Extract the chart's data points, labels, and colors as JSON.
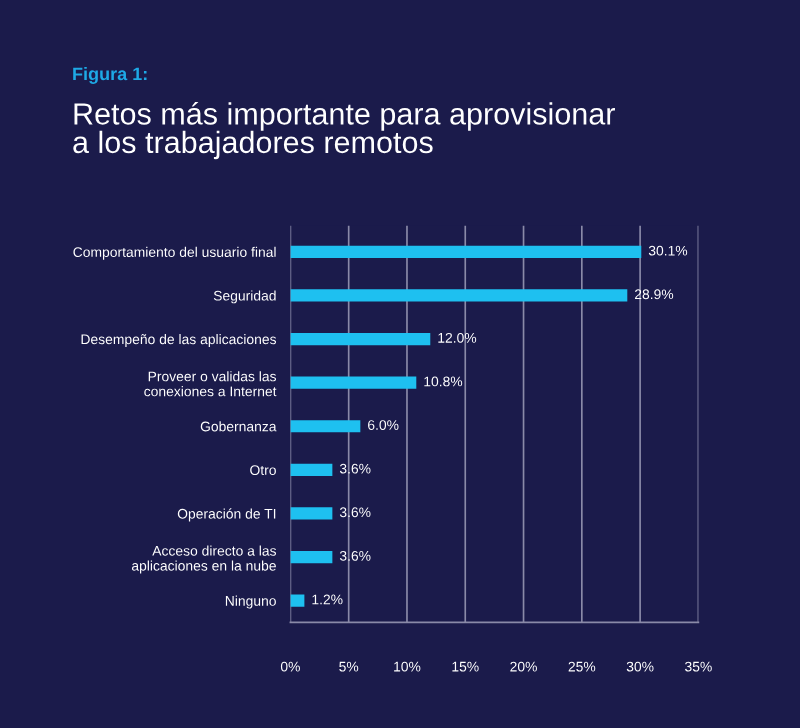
{
  "chart_data": {
    "type": "bar",
    "orientation": "horizontal",
    "title": "Figura 1:",
    "subtitle": "Retos más importante para aprovisionar\na los trabajadores remotos",
    "categories": [
      "Comportamiento del usuario final",
      "Seguridad",
      "Desempeño de las aplicaciones",
      "Proveer o validas las\nconexiones a Internet",
      "Gobernanza",
      "Otro",
      "Operación de TI",
      "Acceso directo a las\naplicaciones en la nube",
      "Ninguno"
    ],
    "values": [
      30.1,
      28.9,
      12.0,
      10.8,
      6.0,
      3.6,
      3.6,
      3.6,
      1.2
    ],
    "value_labels": [
      "30.1%",
      "28.9%",
      "12.0%",
      "10.8%",
      "6.0%",
      "3.6%",
      "3.6%",
      "3.6%",
      "1.2%"
    ],
    "color": "#1ec0f0",
    "xlim": [
      0,
      35
    ],
    "xticks": [
      {
        "value": 0,
        "label": "0%"
      },
      {
        "value": 5,
        "label": "5%"
      },
      {
        "value": 10,
        "label": "10%"
      },
      {
        "value": 15,
        "label": "15%"
      },
      {
        "value": 20,
        "label": "20%"
      },
      {
        "value": 25,
        "label": "25%"
      },
      {
        "value": 30,
        "label": "30%"
      },
      {
        "value": 35,
        "label": "35%"
      }
    ],
    "grid": "x"
  }
}
